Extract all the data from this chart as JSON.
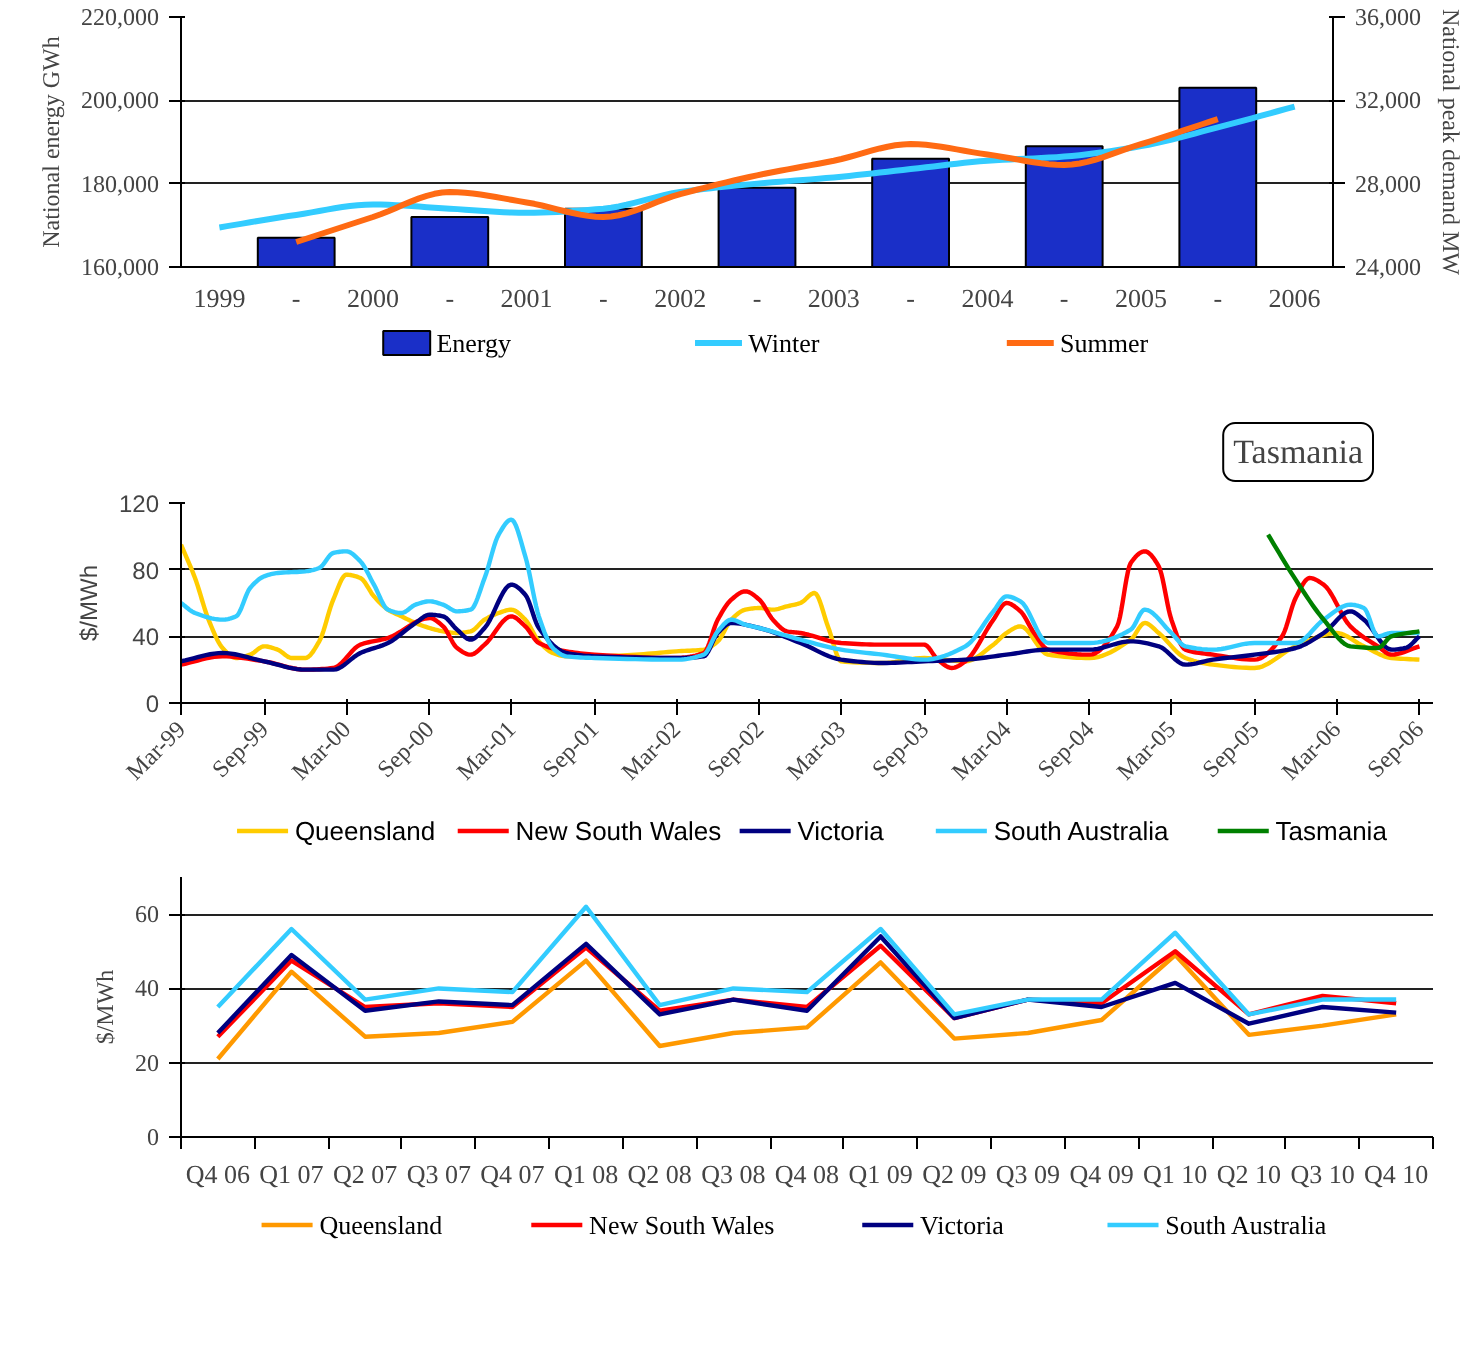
{
  "chart_data": [
    {
      "type": "bar",
      "categories": [
        "1999",
        "-",
        "2000",
        "-",
        "2001",
        "-",
        "2002",
        "-",
        "2003",
        "-",
        "2004",
        "-",
        "2005",
        "-",
        "2006"
      ],
      "ylabel": "National energy GWh",
      "y2label": "National peak demand MW",
      "ylim": [
        160000,
        220000
      ],
      "yticks": [
        {
          "value": 160000,
          "label": "160,000"
        },
        {
          "value": 180000,
          "label": "180,000"
        },
        {
          "value": 200000,
          "label": "200,000"
        },
        {
          "value": 220000,
          "label": "220,000"
        }
      ],
      "y2lim": [
        24000,
        36000
      ],
      "y2ticks": [
        {
          "value": 24000,
          "label": "24,000"
        },
        {
          "value": 28000,
          "label": "28,000"
        },
        {
          "value": 32000,
          "label": "32,000"
        },
        {
          "value": 36000,
          "label": "36,000"
        }
      ],
      "grid": "y",
      "legend": "bottom",
      "series": [
        {
          "name": "Energy",
          "type": "bar",
          "color": "#1a2fc8",
          "values": [
            null,
            167000,
            null,
            172000,
            null,
            174000,
            null,
            179000,
            null,
            186000,
            null,
            189000,
            null,
            203000,
            null
          ]
        },
        {
          "name": "Winter",
          "type": "line",
          "axis": "y2",
          "color": "#33ccff",
          "values": [
            25900,
            26500,
            27000,
            26800,
            26600,
            26800,
            27600,
            28000,
            28300,
            28700,
            29100,
            29300,
            29800,
            30700,
            31700
          ]
        },
        {
          "name": "Summer",
          "type": "line",
          "axis": "y2",
          "color": "#ff6a13",
          "values": [
            null,
            25200,
            26400,
            27600,
            27100,
            26400,
            27500,
            28400,
            29100,
            29900,
            29400,
            28900,
            29900,
            31100,
            null
          ]
        }
      ]
    },
    {
      "type": "line",
      "ylabel": "$/MWh",
      "xlim": [
        "1999-03",
        "2006-10"
      ],
      "ylim": [
        0,
        120
      ],
      "yticks": [
        0,
        40,
        80,
        120
      ],
      "grid": "y",
      "legend": "bottom",
      "xticks": [
        {
          "value": "1999-03",
          "label": "Mar-99"
        },
        {
          "value": "1999-09",
          "label": "Sep-99"
        },
        {
          "value": "2000-03",
          "label": "Mar-00"
        },
        {
          "value": "2000-09",
          "label": "Sep-00"
        },
        {
          "value": "2001-03",
          "label": "Mar-01"
        },
        {
          "value": "2001-09",
          "label": "Sep-01"
        },
        {
          "value": "2002-03",
          "label": "Mar-02"
        },
        {
          "value": "2002-09",
          "label": "Sep-02"
        },
        {
          "value": "2003-03",
          "label": "Mar-03"
        },
        {
          "value": "2003-09",
          "label": "Sep-03"
        },
        {
          "value": "2004-03",
          "label": "Mar-04"
        },
        {
          "value": "2004-09",
          "label": "Sep-04"
        },
        {
          "value": "2005-03",
          "label": "Mar-05"
        },
        {
          "value": "2005-09",
          "label": "Sep-05"
        },
        {
          "value": "2006-03",
          "label": "Mar-06"
        },
        {
          "value": "2006-09",
          "label": "Sep-06"
        }
      ],
      "annotations": [
        "Tasmania"
      ],
      "series": [
        {
          "name": "Queensland",
          "color": "#ffcc00",
          "x": [
            "1999-03",
            "1999-04",
            "1999-05",
            "1999-06",
            "1999-07",
            "1999-08",
            "1999-09",
            "1999-10",
            "1999-11",
            "1999-12",
            "2000-01",
            "2000-02",
            "2000-03",
            "2000-04",
            "2000-05",
            "2000-06",
            "2000-07",
            "2000-08",
            "2000-09",
            "2000-10",
            "2000-11",
            "2000-12",
            "2001-01",
            "2001-02",
            "2001-03",
            "2001-04",
            "2001-05",
            "2001-06",
            "2001-07",
            "2001-09",
            "2001-12",
            "2002-03",
            "2002-05",
            "2002-06",
            "2002-07",
            "2002-08",
            "2002-09",
            "2002-10",
            "2002-11",
            "2002-12",
            "2003-01",
            "2003-02",
            "2003-03",
            "2003-06",
            "2003-09",
            "2003-12",
            "2004-02",
            "2004-03",
            "2004-04",
            "2004-06",
            "2004-09",
            "2004-12",
            "2005-01",
            "2005-02",
            "2005-04",
            "2005-06",
            "2005-09",
            "2005-12",
            "2006-03",
            "2006-05",
            "2006-07",
            "2006-09"
          ],
          "values": [
            95,
            75,
            50,
            33,
            27,
            29,
            34,
            32,
            27,
            27,
            37,
            62,
            77,
            75,
            64,
            56,
            52,
            48,
            45,
            43,
            42,
            43,
            50,
            54,
            56,
            50,
            37,
            30,
            28,
            28,
            29,
            31,
            32,
            37,
            50,
            56,
            57,
            56,
            58,
            60,
            66,
            45,
            25,
            24,
            27,
            25,
            35,
            42,
            46,
            29,
            27,
            38,
            48,
            42,
            27,
            23,
            21,
            34,
            42,
            34,
            27,
            26
          ]
        },
        {
          "name": "New South Wales",
          "color": "#ff0000",
          "x": [
            "1999-03",
            "1999-06",
            "1999-09",
            "1999-12",
            "2000-02",
            "2000-04",
            "2000-06",
            "2000-09",
            "2000-10",
            "2000-11",
            "2000-12",
            "2001-01",
            "2001-03",
            "2001-04",
            "2001-05",
            "2001-07",
            "2001-09",
            "2002-03",
            "2002-05",
            "2002-06",
            "2002-07",
            "2002-08",
            "2002-09",
            "2002-10",
            "2002-11",
            "2002-12",
            "2003-03",
            "2003-06",
            "2003-09",
            "2003-10",
            "2003-11",
            "2003-12",
            "2004-02",
            "2004-03",
            "2004-04",
            "2004-05",
            "2004-06",
            "2004-09",
            "2004-11",
            "2004-12",
            "2005-01",
            "2005-02",
            "2005-03",
            "2005-04",
            "2005-06",
            "2005-09",
            "2005-11",
            "2005-12",
            "2006-01",
            "2006-02",
            "2006-04",
            "2006-06",
            "2006-07",
            "2006-09"
          ],
          "values": [
            23,
            28,
            25,
            20,
            21,
            35,
            39,
            51,
            46,
            33,
            29,
            35,
            52,
            46,
            36,
            31,
            29,
            27,
            30,
            50,
            62,
            67,
            62,
            50,
            43,
            42,
            36,
            35,
            35,
            26,
            21,
            25,
            50,
            60,
            55,
            42,
            32,
            29,
            46,
            84,
            91,
            82,
            50,
            32,
            29,
            26,
            40,
            63,
            75,
            71,
            46,
            34,
            29,
            34
          ]
        },
        {
          "name": "Victoria",
          "color": "#000080",
          "x": [
            "1999-03",
            "1999-06",
            "1999-09",
            "1999-12",
            "2000-02",
            "2000-04",
            "2000-06",
            "2000-08",
            "2000-09",
            "2000-10",
            "2000-11",
            "2000-12",
            "2001-01",
            "2001-03",
            "2001-04",
            "2001-05",
            "2001-07",
            "2001-09",
            "2002-03",
            "2002-05",
            "2002-06",
            "2002-07",
            "2002-09",
            "2002-12",
            "2003-03",
            "2003-06",
            "2003-09",
            "2003-12",
            "2004-03",
            "2004-06",
            "2004-09",
            "2004-12",
            "2005-02",
            "2005-04",
            "2005-06",
            "2005-09",
            "2005-12",
            "2006-02",
            "2006-04",
            "2006-05",
            "2006-07",
            "2006-08",
            "2006-09"
          ],
          "values": [
            25,
            30,
            25,
            20,
            20,
            30,
            36,
            48,
            53,
            52,
            44,
            38,
            45,
            71,
            65,
            45,
            30,
            28,
            27,
            28,
            42,
            48,
            45,
            36,
            26,
            24,
            25,
            26,
            29,
            32,
            32,
            37,
            34,
            23,
            26,
            29,
            33,
            42,
            55,
            50,
            32,
            33,
            40
          ]
        },
        {
          "name": "South Australia",
          "color": "#33ccff",
          "x": [
            "1999-03",
            "1999-04",
            "1999-06",
            "1999-07",
            "1999-08",
            "1999-09",
            "1999-10",
            "1999-12",
            "2000-01",
            "2000-02",
            "2000-03",
            "2000-04",
            "2000-05",
            "2000-06",
            "2000-07",
            "2000-08",
            "2000-09",
            "2000-10",
            "2000-11",
            "2000-12",
            "2001-01",
            "2001-02",
            "2001-03",
            "2001-04",
            "2001-05",
            "2001-06",
            "2001-07",
            "2001-09",
            "2002-03",
            "2002-05",
            "2002-06",
            "2002-07",
            "2002-08",
            "2002-09",
            "2002-12",
            "2003-03",
            "2003-06",
            "2003-09",
            "2003-12",
            "2004-02",
            "2004-03",
            "2004-04",
            "2004-06",
            "2004-09",
            "2004-12",
            "2005-01",
            "2005-03",
            "2005-04",
            "2005-06",
            "2005-09",
            "2005-12",
            "2006-02",
            "2006-04",
            "2006-05",
            "2006-06",
            "2006-07",
            "2006-09"
          ],
          "values": [
            60,
            54,
            50,
            52,
            69,
            76,
            78,
            79,
            81,
            90,
            91,
            85,
            71,
            56,
            54,
            59,
            61,
            59,
            55,
            56,
            75,
            101,
            110,
            88,
            52,
            33,
            28,
            27,
            26,
            29,
            43,
            50,
            47,
            45,
            38,
            32,
            29,
            26,
            34,
            55,
            64,
            61,
            36,
            36,
            44,
            56,
            42,
            34,
            32,
            36,
            36,
            50,
            59,
            57,
            40,
            42,
            42
          ]
        },
        {
          "name": "Tasmania",
          "color": "#008000",
          "x": [
            "2005-10",
            "2005-12",
            "2006-02",
            "2006-04",
            "2006-06",
            "2006-07",
            "2006-09"
          ],
          "values": [
            101,
            74,
            50,
            34,
            33,
            40,
            43
          ]
        }
      ]
    },
    {
      "type": "line",
      "ylabel": "$/MWh",
      "categories": [
        "Q4 06",
        "Q1 07",
        "Q2 07",
        "Q3 07",
        "Q4 07",
        "Q1 08",
        "Q2 08",
        "Q3 08",
        "Q4 08",
        "Q1 09",
        "Q2 09",
        "Q3 09",
        "Q4 09",
        "Q1 10",
        "Q2 10",
        "Q3 10",
        "Q4 10"
      ],
      "ylim": [
        0,
        70
      ],
      "yticks": [
        0,
        20,
        40,
        60
      ],
      "grid": "y",
      "legend": "bottom",
      "series": [
        {
          "name": "Queensland",
          "color": "#ff9900",
          "values": [
            21,
            44.5,
            27,
            28,
            31,
            47.5,
            24.5,
            28,
            29.5,
            47,
            26.5,
            28,
            31.5,
            49,
            27.5,
            30,
            33
          ]
        },
        {
          "name": "New South Wales",
          "color": "#ff0000",
          "values": [
            27,
            47.5,
            35,
            36,
            35,
            51,
            34,
            37,
            35,
            51.5,
            32,
            37,
            36,
            50,
            33,
            38,
            36
          ]
        },
        {
          "name": "Victoria",
          "color": "#000080",
          "values": [
            28,
            49,
            34,
            36.5,
            35.5,
            52,
            33,
            37,
            34,
            54,
            32,
            37,
            35,
            41.5,
            30.5,
            35,
            33.5
          ]
        },
        {
          "name": "South Australia",
          "color": "#33ccff",
          "values": [
            35,
            56,
            37,
            40,
            39,
            62,
            35.5,
            40,
            39,
            56,
            33,
            37,
            37,
            55,
            33,
            37,
            37
          ]
        }
      ]
    }
  ]
}
